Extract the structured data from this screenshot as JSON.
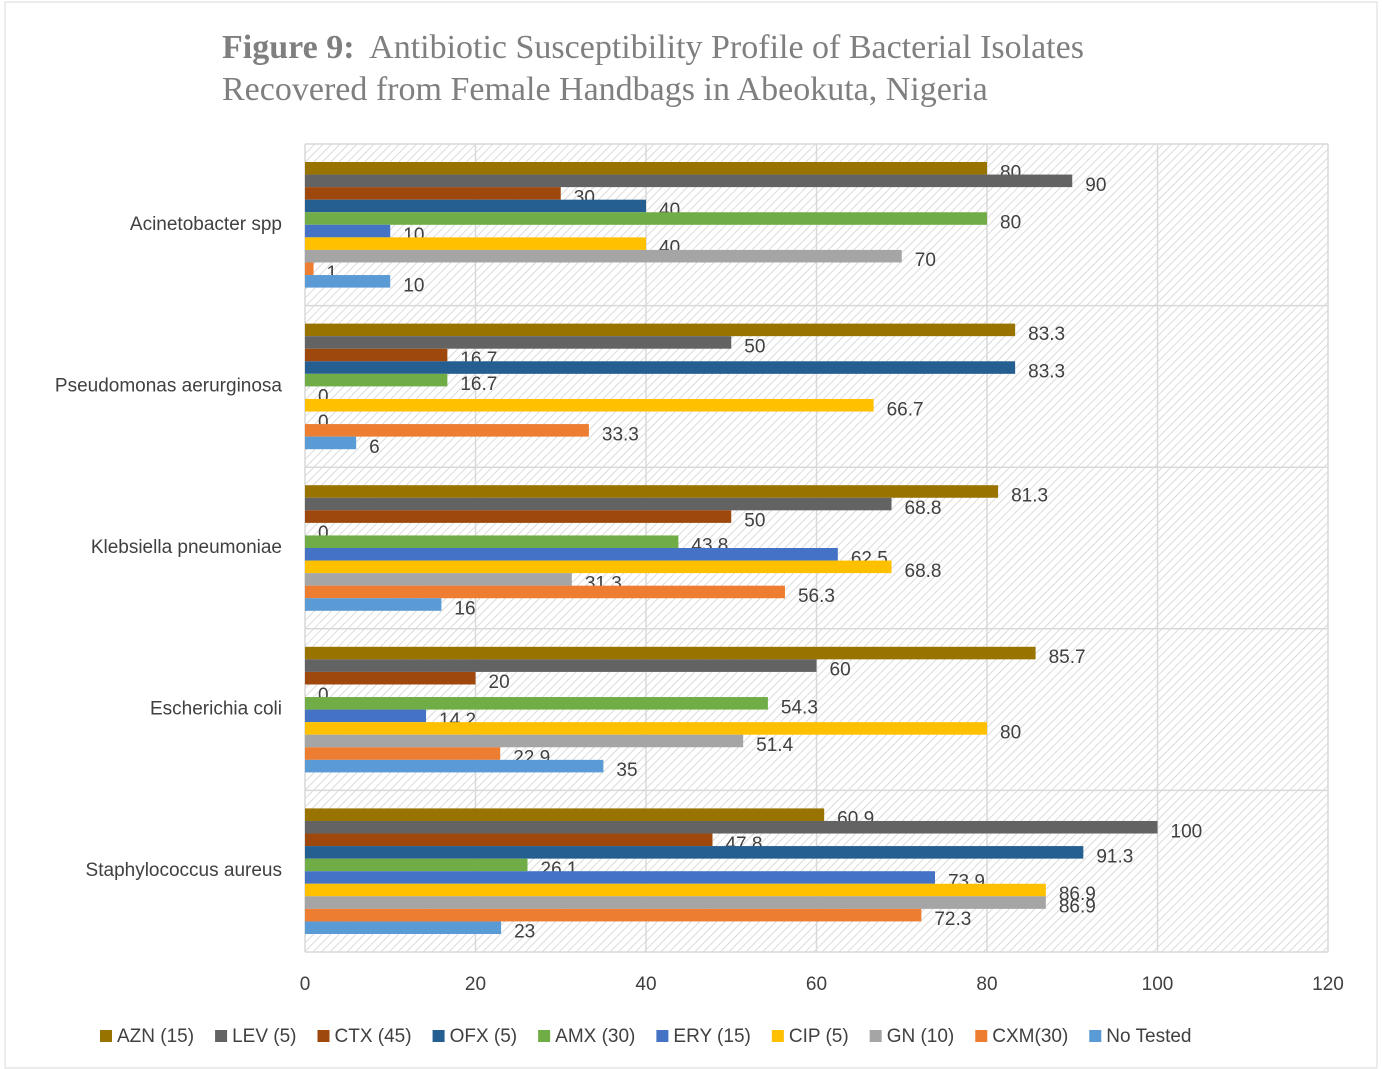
{
  "chart_data": {
    "type": "barh",
    "title_prefix": "Figure 9:",
    "title_lines": [
      "Antibiotic Susceptibility Profile of Bacterial Isolates",
      "Recovered from Female Handbags in Abeokuta, Nigeria"
    ],
    "categories": [
      "Acinetobacter spp",
      "Pseudomonas aerurginosa",
      "Klebsiella pneumoniae",
      "Escherichia coli",
      "Staphylococcus  aureus"
    ],
    "series": [
      {
        "name": "AZN (15)",
        "color": "#997300",
        "values": [
          80,
          83.3,
          81.3,
          85.7,
          60.9
        ]
      },
      {
        "name": "LEV (5)",
        "color": "#636363",
        "values": [
          90,
          50,
          68.8,
          60,
          100
        ]
      },
      {
        "name": "CTX (45)",
        "color": "#9e480e",
        "values": [
          30,
          16.7,
          50,
          20,
          47.8
        ]
      },
      {
        "name": "OFX (5)",
        "color": "#255e91",
        "values": [
          40,
          83.3,
          0,
          0,
          91.3
        ]
      },
      {
        "name": "AMX (30)",
        "color": "#70ad47",
        "values": [
          80,
          16.7,
          43.8,
          54.3,
          26.1
        ]
      },
      {
        "name": "ERY (15)",
        "color": "#4472c4",
        "values": [
          10,
          0,
          62.5,
          14.2,
          73.9
        ]
      },
      {
        "name": "CIP (5)",
        "color": "#ffc000",
        "values": [
          40,
          66.7,
          68.8,
          80,
          86.9
        ]
      },
      {
        "name": "GN (10)",
        "color": "#a5a5a5",
        "values": [
          70,
          0,
          31.3,
          51.4,
          86.9
        ]
      },
      {
        "name": "CXM(30)",
        "color": "#ed7d31",
        "values": [
          1,
          33.3,
          56.3,
          22.9,
          72.3
        ]
      },
      {
        "name": "No Tested",
        "color": "#5b9bd5",
        "values": [
          10,
          6,
          16,
          35,
          23
        ]
      }
    ],
    "xlim": [
      0,
      120
    ],
    "xticks": [
      0,
      20,
      40,
      60,
      80,
      100,
      120
    ],
    "grid": true,
    "legend": "bottom"
  }
}
